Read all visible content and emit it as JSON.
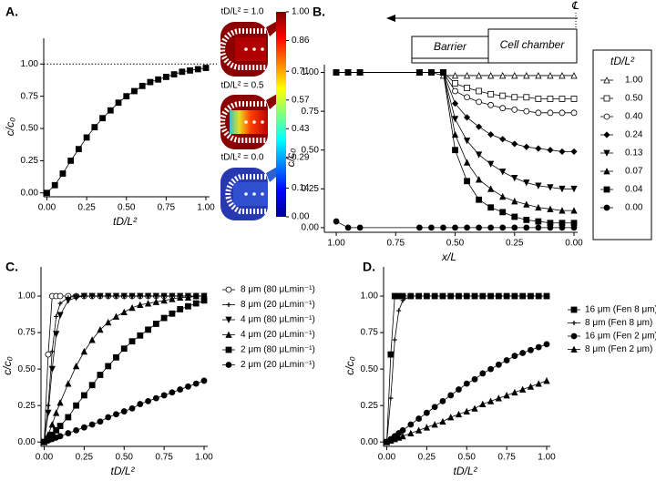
{
  "chart_data": [
    {
      "type": "line",
      "panel_label": "A.",
      "xlabel": "tD/L²",
      "ylabel": "c/c₀",
      "color": "#000000",
      "marker": "square",
      "x": [
        0,
        0.05,
        0.1,
        0.15,
        0.2,
        0.25,
        0.3,
        0.35,
        0.4,
        0.45,
        0.5,
        0.55,
        0.6,
        0.65,
        0.7,
        0.75,
        0.8,
        0.85,
        0.9,
        0.95,
        1
      ],
      "values": [
        0,
        0.06,
        0.15,
        0.25,
        0.34,
        0.43,
        0.51,
        0.58,
        0.64,
        0.7,
        0.75,
        0.79,
        0.83,
        0.86,
        0.88,
        0.9,
        0.92,
        0.94,
        0.95,
        0.96,
        0.97
      ],
      "reference_line": 1,
      "xlim": [
        -0.02,
        1
      ],
      "ylim": [
        -0.03,
        1.2
      ],
      "xticks": [
        {
          "value": 0,
          "label": "0.00"
        },
        {
          "value": 0.25,
          "label": "0.25"
        },
        {
          "value": 0.5,
          "label": "0.50"
        },
        {
          "value": 0.75,
          "label": "0.75"
        },
        {
          "value": 1,
          "label": "1.00"
        }
      ],
      "yticks": [
        {
          "value": 0,
          "label": "0.00"
        },
        {
          "value": 0.25,
          "label": "0.25"
        },
        {
          "value": 0.5,
          "label": "0.50"
        },
        {
          "value": 0.75,
          "label": "0.75"
        },
        {
          "value": 1,
          "label": "1.00"
        }
      ],
      "annotations": [
        "tD/L² = 1.0",
        "tD/L² = 0.5",
        "tD/L² = 0.0"
      ],
      "colorbar": {
        "lim": [
          0,
          1
        ],
        "ticks": [
          {
            "value": 1,
            "label": "1.00"
          },
          {
            "value": 0.86,
            "label": "0.86"
          },
          {
            "value": 0.71,
            "label": "0.71"
          },
          {
            "value": 0.57,
            "label": "0.57"
          },
          {
            "value": 0.43,
            "label": "0.43"
          },
          {
            "value": 0.29,
            "label": "0.29"
          },
          {
            "value": 0.14,
            "label": "0.14"
          },
          {
            "value": 0,
            "label": "0.00"
          }
        ]
      }
    },
    {
      "type": "line",
      "panel_label": "B.",
      "xlabel": "x/L",
      "ylabel": "c/c₀",
      "legend_title": "tD/L²",
      "barrier_label": "Barrier",
      "chamber_label": "Cell chamber",
      "centerline_label": "℄",
      "x": [
        1,
        0.95,
        0.9,
        0.65,
        0.6,
        0.55,
        0.5,
        0.45,
        0.4,
        0.35,
        0.3,
        0.25,
        0.2,
        0.15,
        0.1,
        0.05,
        0
      ],
      "series": [
        {
          "name": "1.00",
          "color": "#000000",
          "marker": "triangle-open",
          "values": [
            1,
            1,
            1,
            1,
            1,
            0.98,
            0.98,
            0.98,
            0.98,
            0.98,
            0.98,
            0.98,
            0.98,
            0.98,
            0.98,
            0.98,
            0.98
          ]
        },
        {
          "name": "0.50",
          "color": "#000000",
          "marker": "square-open",
          "values": [
            1,
            1,
            1,
            1,
            1,
            1,
            0.93,
            0.9,
            0.88,
            0.86,
            0.85,
            0.84,
            0.84,
            0.83,
            0.83,
            0.83,
            0.83
          ]
        },
        {
          "name": "0.40",
          "color": "#000000",
          "marker": "circle-open",
          "values": [
            1,
            1,
            1,
            1,
            1,
            1,
            0.88,
            0.84,
            0.81,
            0.79,
            0.77,
            0.76,
            0.75,
            0.74,
            0.74,
            0.74,
            0.74
          ]
        },
        {
          "name": "0.24",
          "color": "#000000",
          "marker": "diamond",
          "values": [
            1,
            1,
            1,
            1,
            1,
            1,
            0.8,
            0.71,
            0.65,
            0.6,
            0.57,
            0.54,
            0.52,
            0.51,
            0.5,
            0.49,
            0.49
          ]
        },
        {
          "name": "0.13",
          "color": "#000000",
          "marker": "triangle-down",
          "values": [
            1,
            1,
            1,
            1,
            1,
            1,
            0.7,
            0.56,
            0.47,
            0.41,
            0.36,
            0.32,
            0.29,
            0.27,
            0.26,
            0.25,
            0.25
          ]
        },
        {
          "name": "0.07",
          "color": "#000000",
          "marker": "triangle",
          "values": [
            1,
            1,
            1,
            1,
            1,
            1,
            0.6,
            0.42,
            0.31,
            0.25,
            0.2,
            0.17,
            0.15,
            0.13,
            0.12,
            0.11,
            0.11
          ]
        },
        {
          "name": "0.04",
          "color": "#000000",
          "marker": "square",
          "values": [
            1,
            1,
            1,
            1,
            1,
            1,
            0.5,
            0.3,
            0.18,
            0.13,
            0.1,
            0.07,
            0.05,
            0.04,
            0.03,
            0.03,
            0.03
          ]
        },
        {
          "name": "0.00",
          "color": "#000000",
          "marker": "circle",
          "values": [
            0.04,
            0,
            0,
            0,
            0,
            0,
            0,
            0,
            0,
            0,
            0,
            0,
            0,
            0,
            0,
            0,
            0
          ]
        }
      ],
      "xlim": [
        1.05,
        0
      ],
      "ylim": [
        -0.03,
        1.05
      ],
      "xticks": [
        {
          "value": 1,
          "label": "1.00"
        },
        {
          "value": 0.75,
          "label": "0.75"
        },
        {
          "value": 0.5,
          "label": "0.50"
        },
        {
          "value": 0.25,
          "label": "0.25"
        },
        {
          "value": 0,
          "label": "0.00"
        }
      ],
      "yticks": [
        {
          "value": 0,
          "label": "0.00"
        },
        {
          "value": 0.25,
          "label": "0.25"
        },
        {
          "value": 0.5,
          "label": "0.50"
        },
        {
          "value": 0.75,
          "label": "0.75"
        },
        {
          "value": 1,
          "label": "1.00"
        }
      ]
    },
    {
      "type": "line",
      "panel_label": "C.",
      "xlabel": "tD/L²",
      "ylabel": "c/c₀",
      "x": [
        0,
        0.025,
        0.05,
        0.075,
        0.1,
        0.15,
        0.2,
        0.25,
        0.3,
        0.35,
        0.4,
        0.45,
        0.5,
        0.55,
        0.6,
        0.65,
        0.7,
        0.75,
        0.8,
        0.85,
        0.9,
        0.95,
        1
      ],
      "series": [
        {
          "name": "8 μm (80 μLmin⁻¹)",
          "color": "#000000",
          "marker": "circle-open",
          "values": [
            0,
            0.6,
            1,
            1,
            1,
            1,
            1,
            1,
            1,
            1,
            1,
            1,
            1,
            1,
            1,
            1,
            1,
            1,
            1,
            1,
            1,
            1,
            1
          ]
        },
        {
          "name": "8 μm (20 μLmin⁻¹)",
          "color": "#000000",
          "marker": "plus",
          "values": [
            0,
            0.25,
            0.62,
            0.86,
            0.95,
            0.99,
            1,
            1,
            1,
            1,
            1,
            1,
            1,
            1,
            1,
            1,
            1,
            1,
            1,
            1,
            1,
            1,
            1
          ]
        },
        {
          "name": "4 μm (80 μLmin⁻¹)",
          "color": "#000000",
          "marker": "triangle-down",
          "values": [
            0,
            0.2,
            0.5,
            0.74,
            0.87,
            0.97,
            0.99,
            1,
            1,
            1,
            1,
            1,
            1,
            1,
            1,
            1,
            1,
            1,
            1,
            1,
            1,
            1,
            1
          ]
        },
        {
          "name": "4 μm (20 μLmin⁻¹)",
          "color": "#000000",
          "marker": "triangle",
          "values": [
            0,
            0.05,
            0.12,
            0.2,
            0.27,
            0.4,
            0.52,
            0.62,
            0.7,
            0.77,
            0.82,
            0.86,
            0.89,
            0.92,
            0.94,
            0.95,
            0.96,
            0.97,
            0.98,
            0.99,
            0.99,
            1,
            1
          ]
        },
        {
          "name": "2 μm (80 μLmin⁻¹)",
          "color": "#000000",
          "marker": "square",
          "values": [
            0,
            0.02,
            0.05,
            0.08,
            0.11,
            0.17,
            0.25,
            0.32,
            0.39,
            0.46,
            0.52,
            0.58,
            0.64,
            0.69,
            0.73,
            0.77,
            0.81,
            0.85,
            0.88,
            0.91,
            0.93,
            0.95,
            0.97
          ]
        },
        {
          "name": "2 μm (20 μLmin⁻¹)",
          "color": "#000000",
          "marker": "circle",
          "values": [
            0,
            0.01,
            0.02,
            0.03,
            0.04,
            0.06,
            0.08,
            0.1,
            0.12,
            0.14,
            0.17,
            0.19,
            0.21,
            0.23,
            0.26,
            0.28,
            0.3,
            0.32,
            0.34,
            0.36,
            0.38,
            0.4,
            0.42
          ]
        }
      ],
      "xlim": [
        -0.02,
        1
      ],
      "ylim": [
        -0.03,
        1.2
      ],
      "xticks": [
        {
          "value": 0,
          "label": "0.00"
        },
        {
          "value": 0.25,
          "label": "0.25"
        },
        {
          "value": 0.5,
          "label": "0.50"
        },
        {
          "value": 0.75,
          "label": "0.75"
        },
        {
          "value": 1,
          "label": "1.00"
        }
      ],
      "yticks": [
        {
          "value": 0,
          "label": "0.00"
        },
        {
          "value": 0.25,
          "label": "0.25"
        },
        {
          "value": 0.5,
          "label": "0.50"
        },
        {
          "value": 0.75,
          "label": "0.75"
        },
        {
          "value": 1,
          "label": "1.00"
        }
      ]
    },
    {
      "type": "line",
      "panel_label": "D.",
      "xlabel": "tD/L²",
      "ylabel": "c/c₀",
      "x": [
        0,
        0.025,
        0.05,
        0.075,
        0.1,
        0.15,
        0.2,
        0.25,
        0.3,
        0.35,
        0.4,
        0.45,
        0.5,
        0.55,
        0.6,
        0.65,
        0.7,
        0.75,
        0.8,
        0.85,
        0.9,
        0.95,
        1
      ],
      "series": [
        {
          "name": "16 μm (Fen 8 μm)",
          "color": "#000000",
          "marker": "square",
          "values": [
            0,
            0.6,
            1,
            1,
            1,
            1,
            1,
            1,
            1,
            1,
            1,
            1,
            1,
            1,
            1,
            1,
            1,
            1,
            1,
            1,
            1,
            1,
            1
          ]
        },
        {
          "name": "8 μm (Fen 8 μm)",
          "color": "#000000",
          "marker": "plus",
          "values": [
            0,
            0.3,
            0.7,
            0.9,
            0.97,
            1,
            1,
            1,
            1,
            1,
            1,
            1,
            1,
            1,
            1,
            1,
            1,
            1,
            1,
            1,
            1,
            1,
            1
          ]
        },
        {
          "name": "16 μm (Fen 2 μm)",
          "color": "#000000",
          "marker": "circle",
          "values": [
            0,
            0.02,
            0.04,
            0.06,
            0.08,
            0.12,
            0.16,
            0.2,
            0.24,
            0.28,
            0.32,
            0.36,
            0.4,
            0.43,
            0.47,
            0.5,
            0.53,
            0.56,
            0.59,
            0.61,
            0.63,
            0.65,
            0.67
          ]
        },
        {
          "name": "8 μm (Fen 2 μm)",
          "color": "#000000",
          "marker": "triangle",
          "values": [
            0,
            0.01,
            0.02,
            0.03,
            0.04,
            0.06,
            0.08,
            0.1,
            0.12,
            0.14,
            0.17,
            0.19,
            0.21,
            0.23,
            0.26,
            0.28,
            0.3,
            0.32,
            0.34,
            0.36,
            0.38,
            0.4,
            0.42
          ]
        }
      ],
      "xlim": [
        -0.02,
        1
      ],
      "ylim": [
        -0.03,
        1.2
      ],
      "xticks": [
        {
          "value": 0,
          "label": "0.00"
        },
        {
          "value": 0.25,
          "label": "0.25"
        },
        {
          "value": 0.5,
          "label": "0.50"
        },
        {
          "value": 0.75,
          "label": "0.75"
        },
        {
          "value": 1,
          "label": "1.00"
        }
      ],
      "yticks": [
        {
          "value": 0,
          "label": "0.00"
        },
        {
          "value": 0.25,
          "label": "0.25"
        },
        {
          "value": 0.5,
          "label": "0.50"
        },
        {
          "value": 0.75,
          "label": "0.75"
        },
        {
          "value": 1,
          "label": "1.00"
        }
      ]
    }
  ]
}
